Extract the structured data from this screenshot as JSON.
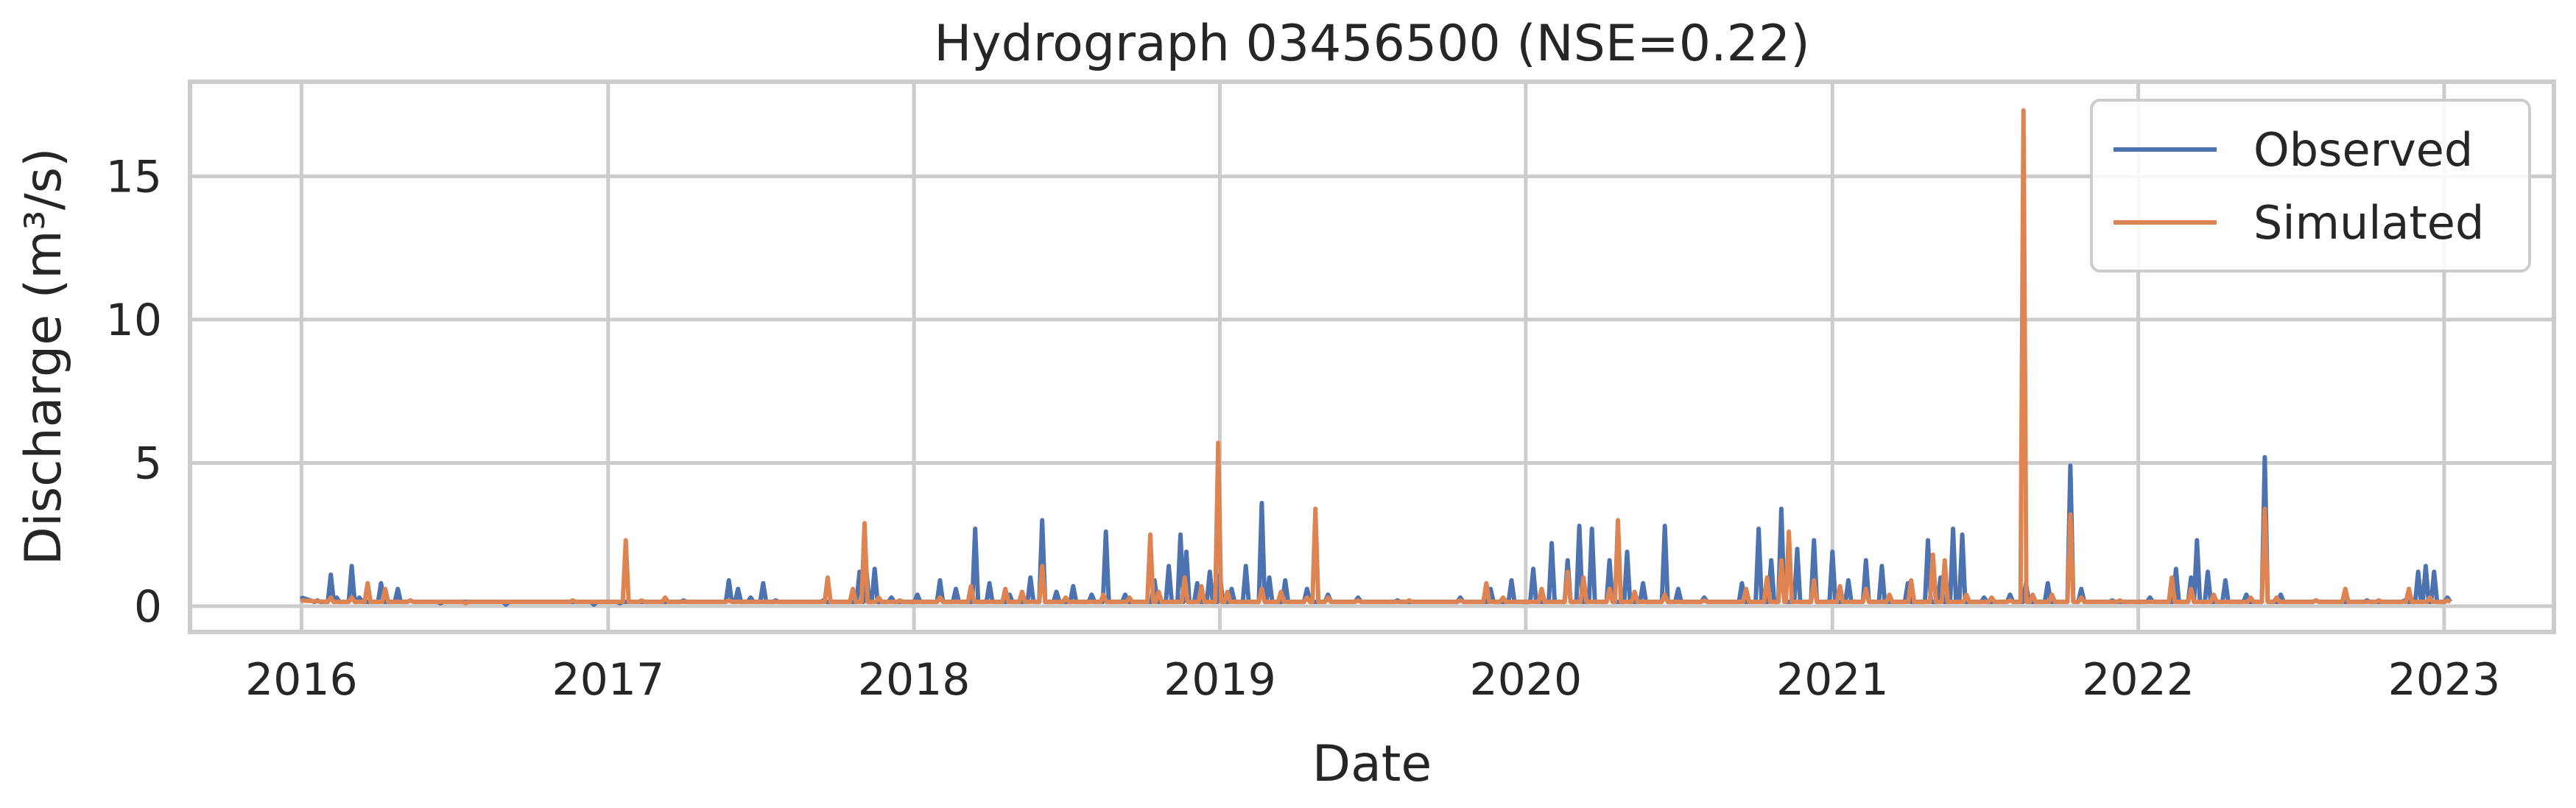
{
  "chart_data": {
    "type": "line",
    "title": "Hydrograph 03456500  (NSE=0.22)",
    "xlabel": "Date",
    "ylabel": "Discharge (m³/s)",
    "xlim": [
      "2015-08-21",
      "2023-05-12"
    ],
    "ylim": [
      -0.9,
      18.3
    ],
    "x_ticks": [
      "2016",
      "2017",
      "2018",
      "2019",
      "2020",
      "2021",
      "2022",
      "2023"
    ],
    "y_ticks": [
      0,
      5,
      10,
      15
    ],
    "grid": true,
    "legend_position": "top-right",
    "colors": {
      "observed": "#4c72b0",
      "simulated": "#dd8452"
    },
    "series": [
      {
        "name": "Observed",
        "points": [
          [
            "2016-01-01",
            0.3
          ],
          [
            "2016-01-20",
            0.2
          ],
          [
            "2016-02-05",
            1.1
          ],
          [
            "2016-02-12",
            0.3
          ],
          [
            "2016-03-01",
            1.4
          ],
          [
            "2016-03-10",
            0.3
          ],
          [
            "2016-04-05",
            0.8
          ],
          [
            "2016-04-25",
            0.6
          ],
          [
            "2016-05-10",
            0.2
          ],
          [
            "2016-06-15",
            0.1
          ],
          [
            "2016-09-01",
            0.05
          ],
          [
            "2016-12-15",
            0.05
          ],
          [
            "2017-01-15",
            0.1
          ],
          [
            "2017-04-01",
            0.2
          ],
          [
            "2017-05-25",
            0.9
          ],
          [
            "2017-06-05",
            0.6
          ],
          [
            "2017-06-20",
            0.3
          ],
          [
            "2017-07-05",
            0.8
          ],
          [
            "2017-07-20",
            0.2
          ],
          [
            "2017-09-15",
            0.2
          ],
          [
            "2017-10-28",
            1.2
          ],
          [
            "2017-11-05",
            1.3
          ],
          [
            "2017-11-15",
            1.3
          ],
          [
            "2017-12-05",
            0.3
          ],
          [
            "2018-01-05",
            0.4
          ],
          [
            "2018-02-01",
            0.9
          ],
          [
            "2018-02-20",
            0.6
          ],
          [
            "2018-03-15",
            2.7
          ],
          [
            "2018-04-01",
            0.8
          ],
          [
            "2018-04-25",
            0.4
          ],
          [
            "2018-05-20",
            1.0
          ],
          [
            "2018-06-03",
            3.0
          ],
          [
            "2018-06-20",
            0.5
          ],
          [
            "2018-07-10",
            0.7
          ],
          [
            "2018-08-01",
            0.4
          ],
          [
            "2018-08-18",
            2.6
          ],
          [
            "2018-09-10",
            0.4
          ],
          [
            "2018-10-15",
            0.9
          ],
          [
            "2018-11-01",
            1.4
          ],
          [
            "2018-11-15",
            2.5
          ],
          [
            "2018-11-22",
            1.9
          ],
          [
            "2018-12-05",
            0.8
          ],
          [
            "2018-12-20",
            1.2
          ],
          [
            "2019-01-01",
            1.1
          ],
          [
            "2019-01-15",
            0.6
          ],
          [
            "2019-02-01",
            1.4
          ],
          [
            "2019-02-20",
            3.6
          ],
          [
            "2019-03-01",
            1.0
          ],
          [
            "2019-03-20",
            0.9
          ],
          [
            "2019-04-15",
            0.6
          ],
          [
            "2019-05-10",
            0.4
          ],
          [
            "2019-06-15",
            0.3
          ],
          [
            "2019-08-01",
            0.2
          ],
          [
            "2019-10-15",
            0.3
          ],
          [
            "2019-11-20",
            0.6
          ],
          [
            "2019-12-15",
            0.9
          ],
          [
            "2020-01-10",
            1.3
          ],
          [
            "2020-02-01",
            2.2
          ],
          [
            "2020-02-20",
            1.6
          ],
          [
            "2020-03-05",
            2.8
          ],
          [
            "2020-03-20",
            2.7
          ],
          [
            "2020-04-10",
            1.6
          ],
          [
            "2020-05-01",
            1.9
          ],
          [
            "2020-05-20",
            0.8
          ],
          [
            "2020-06-15",
            2.8
          ],
          [
            "2020-07-01",
            0.6
          ],
          [
            "2020-08-01",
            0.3
          ],
          [
            "2020-09-15",
            0.8
          ],
          [
            "2020-10-05",
            2.7
          ],
          [
            "2020-10-20",
            1.6
          ],
          [
            "2020-11-01",
            3.4
          ],
          [
            "2020-11-20",
            2.0
          ],
          [
            "2020-12-10",
            2.3
          ],
          [
            "2021-01-01",
            1.9
          ],
          [
            "2021-01-20",
            0.9
          ],
          [
            "2021-02-10",
            1.6
          ],
          [
            "2021-03-01",
            1.4
          ],
          [
            "2021-04-01",
            0.8
          ],
          [
            "2021-04-25",
            2.3
          ],
          [
            "2021-05-10",
            1.0
          ],
          [
            "2021-05-25",
            2.7
          ],
          [
            "2021-06-05",
            2.5
          ],
          [
            "2021-07-01",
            0.3
          ],
          [
            "2021-08-01",
            0.4
          ],
          [
            "2021-08-20",
            0.8
          ],
          [
            "2021-09-15",
            0.8
          ],
          [
            "2021-10-12",
            4.9
          ],
          [
            "2021-10-25",
            0.6
          ],
          [
            "2021-12-01",
            0.2
          ],
          [
            "2022-01-15",
            0.3
          ],
          [
            "2022-02-15",
            1.3
          ],
          [
            "2022-03-05",
            1.0
          ],
          [
            "2022-03-12",
            2.3
          ],
          [
            "2022-03-25",
            1.2
          ],
          [
            "2022-04-15",
            0.9
          ],
          [
            "2022-05-10",
            0.4
          ],
          [
            "2022-06-01",
            5.2
          ],
          [
            "2022-06-20",
            0.4
          ],
          [
            "2022-08-01",
            0.2
          ],
          [
            "2022-10-01",
            0.2
          ],
          [
            "2022-11-15",
            0.2
          ],
          [
            "2022-12-01",
            1.2
          ],
          [
            "2022-12-10",
            1.4
          ],
          [
            "2022-12-20",
            1.2
          ],
          [
            "2023-01-05",
            0.3
          ]
        ]
      },
      {
        "name": "Simulated",
        "points": [
          [
            "2016-01-01",
            0.2
          ],
          [
            "2016-02-05",
            0.3
          ],
          [
            "2016-03-01",
            0.3
          ],
          [
            "2016-03-20",
            0.8
          ],
          [
            "2016-04-10",
            0.6
          ],
          [
            "2016-05-10",
            0.2
          ],
          [
            "2016-07-15",
            0.1
          ],
          [
            "2016-11-20",
            0.2
          ],
          [
            "2017-01-22",
            2.3
          ],
          [
            "2017-02-10",
            0.2
          ],
          [
            "2017-03-10",
            0.3
          ],
          [
            "2017-05-25",
            0.2
          ],
          [
            "2017-09-20",
            1.0
          ],
          [
            "2017-10-20",
            0.6
          ],
          [
            "2017-11-03",
            2.9
          ],
          [
            "2017-11-20",
            0.3
          ],
          [
            "2017-12-15",
            0.2
          ],
          [
            "2018-02-01",
            0.3
          ],
          [
            "2018-03-10",
            0.7
          ],
          [
            "2018-04-20",
            0.6
          ],
          [
            "2018-05-10",
            0.5
          ],
          [
            "2018-06-03",
            1.4
          ],
          [
            "2018-07-01",
            0.3
          ],
          [
            "2018-08-15",
            0.4
          ],
          [
            "2018-09-15",
            0.3
          ],
          [
            "2018-10-10",
            2.5
          ],
          [
            "2018-10-20",
            0.5
          ],
          [
            "2018-11-20",
            1.0
          ],
          [
            "2018-12-10",
            0.7
          ],
          [
            "2018-12-30",
            5.7
          ],
          [
            "2019-01-10",
            0.5
          ],
          [
            "2019-02-20",
            0.6
          ],
          [
            "2019-03-15",
            0.5
          ],
          [
            "2019-04-15",
            0.3
          ],
          [
            "2019-04-25",
            3.4
          ],
          [
            "2019-05-10",
            0.3
          ],
          [
            "2019-06-15",
            0.2
          ],
          [
            "2019-08-15",
            0.2
          ],
          [
            "2019-10-15",
            0.2
          ],
          [
            "2019-11-15",
            0.8
          ],
          [
            "2019-12-05",
            0.3
          ],
          [
            "2020-01-20",
            0.6
          ],
          [
            "2020-02-20",
            1.2
          ],
          [
            "2020-03-10",
            1.0
          ],
          [
            "2020-04-10",
            0.6
          ],
          [
            "2020-04-20",
            3.0
          ],
          [
            "2020-05-10",
            0.5
          ],
          [
            "2020-06-15",
            0.4
          ],
          [
            "2020-08-01",
            0.2
          ],
          [
            "2020-09-20",
            0.6
          ],
          [
            "2020-10-15",
            1.0
          ],
          [
            "2020-11-01",
            1.6
          ],
          [
            "2020-11-10",
            2.6
          ],
          [
            "2020-12-10",
            0.9
          ],
          [
            "2021-01-10",
            0.7
          ],
          [
            "2021-02-10",
            0.6
          ],
          [
            "2021-03-10",
            0.4
          ],
          [
            "2021-04-05",
            0.9
          ],
          [
            "2021-05-01",
            1.8
          ],
          [
            "2021-05-15",
            1.6
          ],
          [
            "2021-06-10",
            0.4
          ],
          [
            "2021-07-10",
            0.3
          ],
          [
            "2021-08-01",
            0.2
          ],
          [
            "2021-08-17",
            17.3
          ],
          [
            "2021-08-28",
            0.4
          ],
          [
            "2021-09-20",
            0.4
          ],
          [
            "2021-10-12",
            3.2
          ],
          [
            "2021-10-25",
            0.3
          ],
          [
            "2021-12-10",
            0.2
          ],
          [
            "2022-02-10",
            1.0
          ],
          [
            "2022-03-05",
            0.6
          ],
          [
            "2022-04-01",
            0.4
          ],
          [
            "2022-05-15",
            0.3
          ],
          [
            "2022-06-01",
            3.4
          ],
          [
            "2022-06-15",
            0.3
          ],
          [
            "2022-08-01",
            0.2
          ],
          [
            "2022-09-05",
            0.6
          ],
          [
            "2022-10-15",
            0.2
          ],
          [
            "2022-11-20",
            0.6
          ],
          [
            "2022-12-15",
            0.3
          ],
          [
            "2023-01-05",
            0.2
          ]
        ]
      }
    ]
  }
}
